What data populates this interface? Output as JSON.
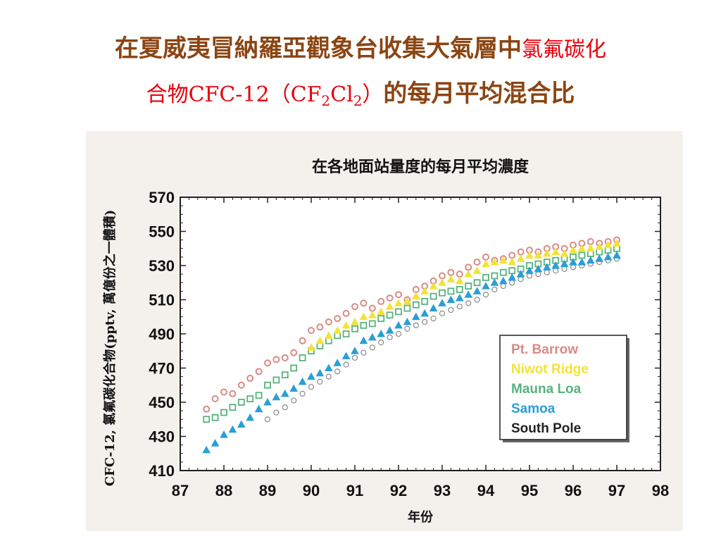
{
  "page": {
    "title_line1_dark": "在夏威夷冒納羅亞觀象台收集大氣層中",
    "title_line1_red": "氯氟碳化",
    "title_line2_red": "合物CFC-12（CF",
    "title_line2_sub1": "2",
    "title_line2_red_b": "Cl",
    "title_line2_sub2": "2",
    "title_line2_red_c": "）",
    "title_line2_dark": "的每月平均混合比"
  },
  "chart_data": {
    "type": "scatter",
    "title": "在各地面站量度的每月平均濃度",
    "xlabel": "年份",
    "ylabel": "CFC-12, 氯氟碳化合物(pptv, 萬億份之一體積)",
    "xlim": [
      87,
      98
    ],
    "ylim": [
      410,
      570
    ],
    "x_ticks": [
      "87",
      "88",
      "89",
      "90",
      "91",
      "92",
      "93",
      "94",
      "95",
      "96",
      "97",
      "98"
    ],
    "y_ticks": [
      "410",
      "430",
      "450",
      "470",
      "490",
      "510",
      "530",
      "550",
      "570"
    ],
    "legend_position": "right",
    "series": [
      {
        "name": "Pt. Barrow",
        "color": "#d98b84",
        "marker": "circle",
        "x": [
          87.6,
          87.8,
          88.0,
          88.2,
          88.4,
          88.6,
          88.8,
          89.0,
          89.2,
          89.4,
          89.6,
          89.8,
          90.0,
          90.2,
          90.4,
          90.6,
          90.8,
          91.0,
          91.2,
          91.4,
          91.6,
          91.8,
          92.0,
          92.2,
          92.4,
          92.6,
          92.8,
          93.0,
          93.2,
          93.4,
          93.6,
          93.8,
          94.0,
          94.2,
          94.4,
          94.6,
          94.8,
          95.0,
          95.2,
          95.4,
          95.6,
          95.8,
          96.0,
          96.2,
          96.4,
          96.6,
          96.8,
          97.0
        ],
        "y": [
          446,
          452,
          456,
          455,
          460,
          464,
          468,
          473,
          475,
          476,
          479,
          486,
          492,
          494,
          497,
          499,
          502,
          506,
          508,
          505,
          509,
          511,
          513,
          510,
          516,
          518,
          521,
          524,
          526,
          525,
          529,
          532,
          535,
          533,
          534,
          536,
          538,
          539,
          538,
          540,
          541,
          540,
          542,
          543,
          544,
          543,
          544,
          545
        ]
      },
      {
        "name": "Niwot Ridge",
        "color": "#f2e33a",
        "marker": "triangle",
        "x": [
          90.0,
          90.2,
          90.4,
          90.6,
          90.8,
          91.0,
          91.2,
          91.4,
          91.6,
          91.8,
          92.0,
          92.2,
          92.4,
          92.6,
          92.8,
          93.0,
          93.2,
          93.4,
          93.6,
          93.8,
          94.0,
          94.2,
          94.4,
          94.6,
          94.8,
          95.0,
          95.2,
          95.4,
          95.6,
          95.8,
          96.0,
          96.2,
          96.4,
          96.6,
          96.8,
          97.0
        ],
        "y": [
          482,
          486,
          489,
          492,
          495,
          497,
          500,
          501,
          503,
          506,
          508,
          509,
          512,
          515,
          518,
          520,
          522,
          521,
          525,
          527,
          531,
          532,
          533,
          532,
          534,
          536,
          536,
          537,
          538,
          537,
          539,
          540,
          540,
          541,
          542,
          543
        ]
      },
      {
        "name": "Mauna Loa",
        "color": "#58b27e",
        "marker": "square",
        "x": [
          87.6,
          87.8,
          88.0,
          88.2,
          88.4,
          88.6,
          88.8,
          89.0,
          89.2,
          89.4,
          89.6,
          89.8,
          90.0,
          90.2,
          90.4,
          90.6,
          90.8,
          91.0,
          91.2,
          91.4,
          91.6,
          91.8,
          92.0,
          92.2,
          92.4,
          92.6,
          92.8,
          93.0,
          93.2,
          93.4,
          93.6,
          93.8,
          94.0,
          94.2,
          94.4,
          94.6,
          94.8,
          95.0,
          95.2,
          95.4,
          95.6,
          95.8,
          96.0,
          96.2,
          96.4,
          96.6,
          96.8,
          97.0
        ],
        "y": [
          440,
          441,
          444,
          447,
          450,
          452,
          454,
          460,
          463,
          466,
          470,
          476,
          480,
          483,
          486,
          489,
          490,
          493,
          495,
          496,
          499,
          501,
          503,
          505,
          507,
          509,
          512,
          514,
          515,
          516,
          518,
          520,
          523,
          524,
          526,
          527,
          528,
          530,
          531,
          532,
          533,
          534,
          535,
          536,
          537,
          538,
          539,
          540
        ]
      },
      {
        "name": "Samoa",
        "color": "#2a9fd6",
        "marker": "triangle",
        "x": [
          87.6,
          87.8,
          88.0,
          88.2,
          88.4,
          88.6,
          88.8,
          89.0,
          89.2,
          89.4,
          89.6,
          89.8,
          90.0,
          90.2,
          90.4,
          90.6,
          90.8,
          91.0,
          91.2,
          91.4,
          91.6,
          91.8,
          92.0,
          92.2,
          92.4,
          92.6,
          92.8,
          93.0,
          93.2,
          93.4,
          93.6,
          93.8,
          94.0,
          94.2,
          94.4,
          94.6,
          94.8,
          95.0,
          95.2,
          95.4,
          95.6,
          95.8,
          96.0,
          96.2,
          96.4,
          96.6,
          96.8,
          97.0
        ],
        "y": [
          422,
          426,
          431,
          434,
          437,
          441,
          446,
          450,
          453,
          455,
          458,
          462,
          465,
          467,
          470,
          473,
          477,
          480,
          486,
          488,
          490,
          492,
          495,
          497,
          500,
          502,
          505,
          508,
          510,
          511,
          513,
          515,
          518,
          520,
          521,
          523,
          525,
          527,
          528,
          529,
          530,
          531,
          532,
          532,
          533,
          534,
          535,
          536
        ]
      },
      {
        "name": "South Pole",
        "color": "#8a8a8a",
        "marker": "ring",
        "x": [
          89.0,
          89.2,
          89.4,
          89.6,
          89.8,
          90.0,
          90.2,
          90.4,
          90.6,
          90.8,
          91.0,
          91.2,
          91.4,
          91.6,
          91.8,
          92.0,
          92.2,
          92.4,
          92.6,
          92.8,
          93.0,
          93.2,
          93.4,
          93.6,
          93.8,
          94.0,
          94.2,
          94.4,
          94.6,
          94.8,
          95.0,
          95.2,
          95.4,
          95.6,
          95.8,
          96.0,
          96.2,
          96.4,
          96.6,
          96.8,
          97.0
        ],
        "y": [
          440,
          444,
          447,
          451,
          455,
          459,
          462,
          465,
          468,
          472,
          476,
          479,
          482,
          485,
          488,
          490,
          493,
          495,
          497,
          499,
          502,
          504,
          506,
          508,
          510,
          513,
          516,
          518,
          520,
          522,
          524,
          525,
          526,
          527,
          528,
          529,
          530,
          531,
          532,
          533,
          534
        ]
      }
    ]
  }
}
